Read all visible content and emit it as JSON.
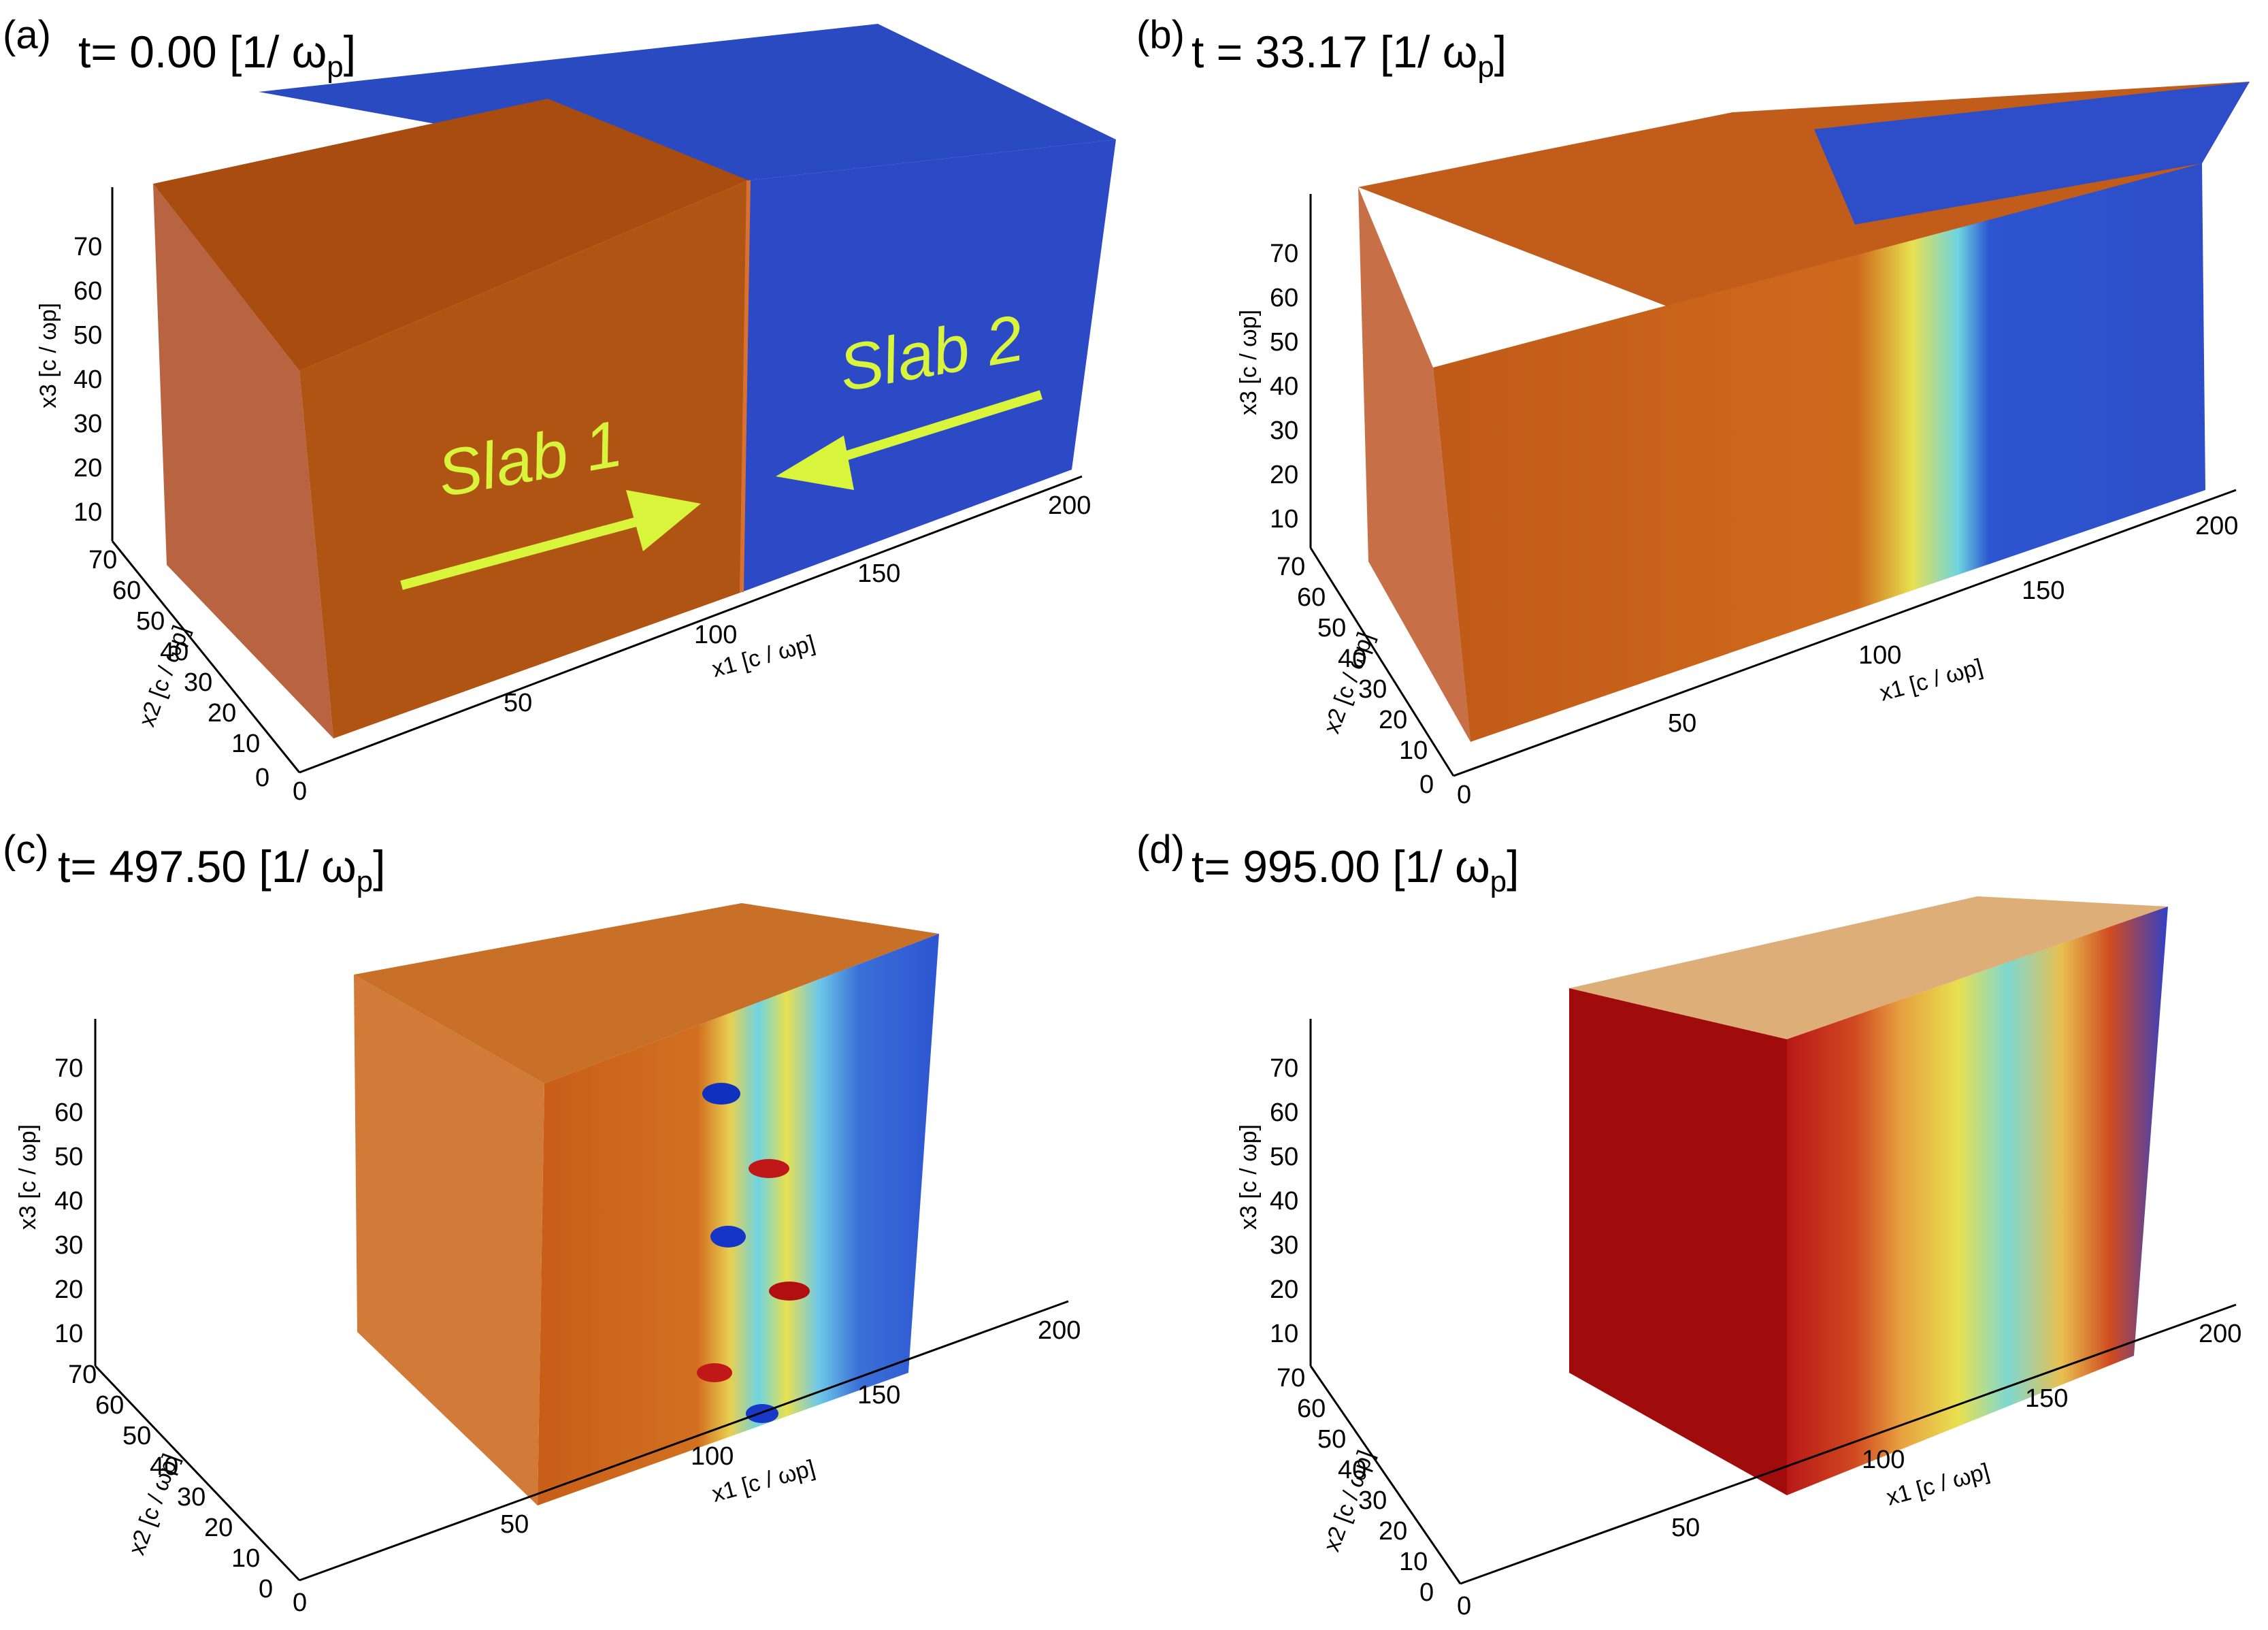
{
  "panels": [
    {
      "label": "(a)",
      "time": "t= 0.00 [1/ ω",
      "time_sub": "p",
      "time_end": "]"
    },
    {
      "label": "(b)",
      "time": "t = 33.17 [1/ ω",
      "time_sub": "p",
      "time_end": "]"
    },
    {
      "label": "(c)",
      "time": "t= 497.50 [1/ ω",
      "time_sub": "p",
      "time_end": "]"
    },
    {
      "label": "(d)",
      "time": "t= 995.00 [1/ ω",
      "time_sub": "p",
      "time_end": "]"
    }
  ],
  "slabs": {
    "slab1": "Slab 1",
    "slab2": "Slab 2",
    "arrow_color": "#d8f53c"
  },
  "axes": {
    "x1_label": "x1 [c / ωp]",
    "x2_label": "x2 [c / ωp]",
    "x3_label": "x3 [c / ωp]",
    "x1_ticks": [
      "0",
      "50",
      "100",
      "150",
      "200"
    ],
    "x2_ticks": [
      "0",
      "10",
      "20",
      "30",
      "40",
      "50",
      "60",
      "70"
    ],
    "x3_ticks": [
      "10",
      "20",
      "30",
      "40",
      "50",
      "60",
      "70"
    ]
  },
  "colors": {
    "slab1": "#b35412",
    "slab2": "#2a4ac2",
    "hot": "#c01010",
    "mix_yellow": "#e8e050",
    "mix_cyan": "#6ed4e0"
  }
}
